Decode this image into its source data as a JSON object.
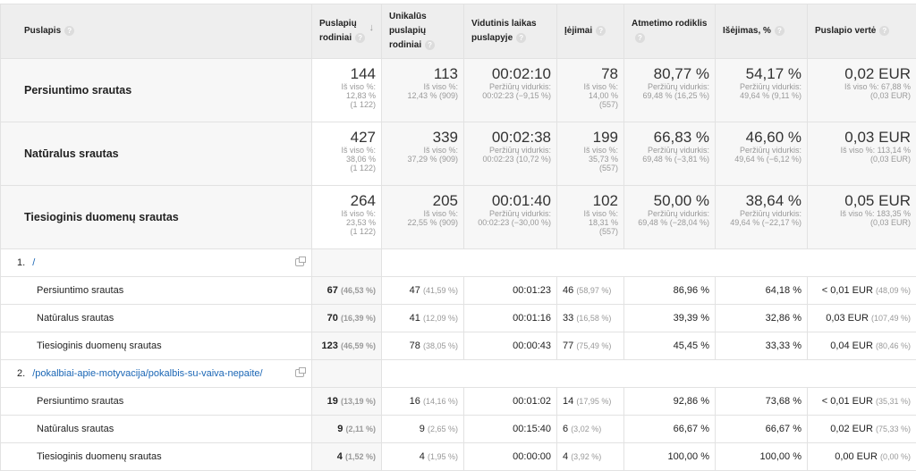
{
  "headers": [
    "Puslapis",
    "Puslapių rodiniai",
    "Unikalūs puslapių rodiniai",
    "Vidutinis laikas puslapyje",
    "Įėjimai",
    "Atmetimo rodiklis",
    "Išėjimas, %",
    "Puslapio vertė"
  ],
  "help_icon": "?",
  "summary": [
    {
      "label": "Persiuntimo srautas",
      "cells": [
        [
          "144",
          "Iš viso %:",
          "12,83 %",
          "(1 122)"
        ],
        [
          "113",
          "Iš viso %:",
          "12,43 % (909)"
        ],
        [
          "00:02:10",
          "Peržiūrų vidurkis:",
          "00:02:23 (−9,15 %)"
        ],
        [
          "78",
          "Iš viso %:",
          "14,00 %",
          "(557)"
        ],
        [
          "80,77 %",
          "Peržiūrų vidurkis:",
          "69,48 % (16,25 %)"
        ],
        [
          "54,17 %",
          "Peržiūrų vidurkis:",
          "49,64 % (9,11 %)"
        ],
        [
          "0,02 EUR",
          "Iš viso %: 67,88 %",
          "(0,03 EUR)"
        ]
      ]
    },
    {
      "label": "Natūralus srautas",
      "cells": [
        [
          "427",
          "Iš viso %:",
          "38,06 %",
          "(1 122)"
        ],
        [
          "339",
          "Iš viso %:",
          "37,29 % (909)"
        ],
        [
          "00:02:38",
          "Peržiūrų vidurkis:",
          "00:02:23 (10,72 %)"
        ],
        [
          "199",
          "Iš viso %:",
          "35,73 %",
          "(557)"
        ],
        [
          "66,83 %",
          "Peržiūrų vidurkis:",
          "69,48 % (−3,81 %)"
        ],
        [
          "46,60 %",
          "Peržiūrų vidurkis:",
          "49,64 % (−6,12 %)"
        ],
        [
          "0,03 EUR",
          "Iš viso %: 113,14 %",
          "(0,03 EUR)"
        ]
      ]
    },
    {
      "label": "Tiesioginis duomenų srautas",
      "cells": [
        [
          "264",
          "Iš viso %:",
          "23,53 %",
          "(1 122)"
        ],
        [
          "205",
          "Iš viso %:",
          "22,55 % (909)"
        ],
        [
          "00:01:40",
          "Peržiūrų vidurkis:",
          "00:02:23 (−30,00 %)"
        ],
        [
          "102",
          "Iš viso %:",
          "18,31 %",
          "(557)"
        ],
        [
          "50,00 %",
          "Peržiūrų vidurkis:",
          "69,48 % (−28,04 %)"
        ],
        [
          "38,64 %",
          "Peržiūrų vidurkis:",
          "49,64 % (−22,17 %)"
        ],
        [
          "0,05 EUR",
          "Iš viso %: 183,35 %",
          "(0,03 EUR)"
        ]
      ]
    }
  ],
  "pages": [
    {
      "index": "1.",
      "path": "/",
      "rows": [
        {
          "label": "Persiuntimo srautas",
          "cells": [
            [
              "67",
              "(46,53 %)"
            ],
            [
              "47",
              "(41,59 %)"
            ],
            [
              "00:01:23",
              ""
            ],
            [
              "46",
              "(58,97 %)"
            ],
            [
              "86,96 %",
              ""
            ],
            [
              "64,18 %",
              ""
            ],
            [
              "< 0,01 EUR",
              "(48,09 %)"
            ]
          ]
        },
        {
          "label": "Natūralus srautas",
          "cells": [
            [
              "70",
              "(16,39 %)"
            ],
            [
              "41",
              "(12,09 %)"
            ],
            [
              "00:01:16",
              ""
            ],
            [
              "33",
              "(16,58 %)"
            ],
            [
              "39,39 %",
              ""
            ],
            [
              "32,86 %",
              ""
            ],
            [
              "0,03 EUR",
              "(107,49 %)"
            ]
          ]
        },
        {
          "label": "Tiesioginis duomenų srautas",
          "cells": [
            [
              "123",
              "(46,59 %)"
            ],
            [
              "78",
              "(38,05 %)"
            ],
            [
              "00:00:43",
              ""
            ],
            [
              "77",
              "(75,49 %)"
            ],
            [
              "45,45 %",
              ""
            ],
            [
              "33,33 %",
              ""
            ],
            [
              "0,04 EUR",
              "(80,46 %)"
            ]
          ]
        }
      ]
    },
    {
      "index": "2.",
      "path": "/pokalbiai-apie-motyvacija/pokalbis-su-vaiva-nepaite/",
      "rows": [
        {
          "label": "Persiuntimo srautas",
          "cells": [
            [
              "19",
              "(13,19 %)"
            ],
            [
              "16",
              "(14,16 %)"
            ],
            [
              "00:01:02",
              ""
            ],
            [
              "14",
              "(17,95 %)"
            ],
            [
              "92,86 %",
              ""
            ],
            [
              "73,68 %",
              ""
            ],
            [
              "< 0,01 EUR",
              "(35,31 %)"
            ]
          ]
        },
        {
          "label": "Natūralus srautas",
          "cells": [
            [
              "9",
              "(2,11 %)"
            ],
            [
              "9",
              "(2,65 %)"
            ],
            [
              "00:15:40",
              ""
            ],
            [
              "6",
              "(3,02 %)"
            ],
            [
              "66,67 %",
              ""
            ],
            [
              "66,67 %",
              ""
            ],
            [
              "0,02 EUR",
              "(75,33 %)"
            ]
          ]
        },
        {
          "label": "Tiesioginis duomenų srautas",
          "cells": [
            [
              "4",
              "(1,52 %)"
            ],
            [
              "4",
              "(1,95 %)"
            ],
            [
              "00:00:00",
              ""
            ],
            [
              "4",
              "(3,92 %)"
            ],
            [
              "100,00 %",
              ""
            ],
            [
              "100,00 %",
              ""
            ],
            [
              "0,00 EUR",
              "(0,00 %)"
            ]
          ]
        }
      ]
    }
  ]
}
